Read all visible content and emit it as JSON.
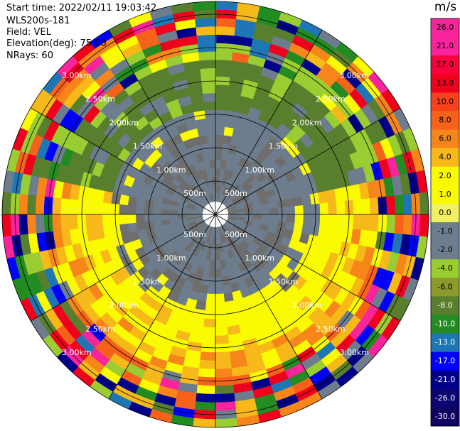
{
  "header": {
    "start_time": "Start time: 2022/02/11 19:03:42",
    "instrument": "WLS200s-181",
    "field": "Field: VEL",
    "elevation": "Elevation(deg): 75.00",
    "nrays": "NRays: 60"
  },
  "chart_data": {
    "type": "ppi_polar_heatmap",
    "field": "VEL",
    "nrays": 60,
    "elevation_deg": 75.0,
    "range_rings": [
      "500m",
      "1.00km",
      "1.50km",
      "2.00km",
      "2.50km",
      "3.00km"
    ],
    "colorbar": {
      "unit": "m/s",
      "tick_labels": [
        "26.0",
        "21.0",
        "17.0",
        "13.0",
        "10.0",
        "8.0",
        "6.0",
        "4.0",
        "2.0",
        "1.0",
        "0.0",
        "-1.0",
        "-2.0",
        "-4.0",
        "-6.0",
        "-8.0",
        "-10.0",
        "-13.0",
        "-17.0",
        "-21.0",
        "-26.0",
        "-30.0"
      ],
      "colors": [
        "#f7249b",
        "#f7249b",
        "#f7003c",
        "#f0001c",
        "#f6421b",
        "#f7621b",
        "#f7861a",
        "#f7b91a",
        "#fafa00",
        "#fafa00",
        "#f0f060",
        "#6d7d8d",
        "#6d7d8d",
        "#9acd32",
        "#8b9a2b",
        "#587f2d",
        "#228b22",
        "#1e77b4",
        "#0000ff",
        "#00008b",
        "#0b0570",
        "#100060"
      ]
    },
    "sector_pattern": [
      {
        "sector": "north",
        "dominant": [
          "#587f2d",
          "#9acd32",
          "#6d7d8d"
        ]
      },
      {
        "sector": "south",
        "dominant": [
          "#fafa00",
          "#f7b91a",
          "#f7621b"
        ]
      }
    ]
  }
}
